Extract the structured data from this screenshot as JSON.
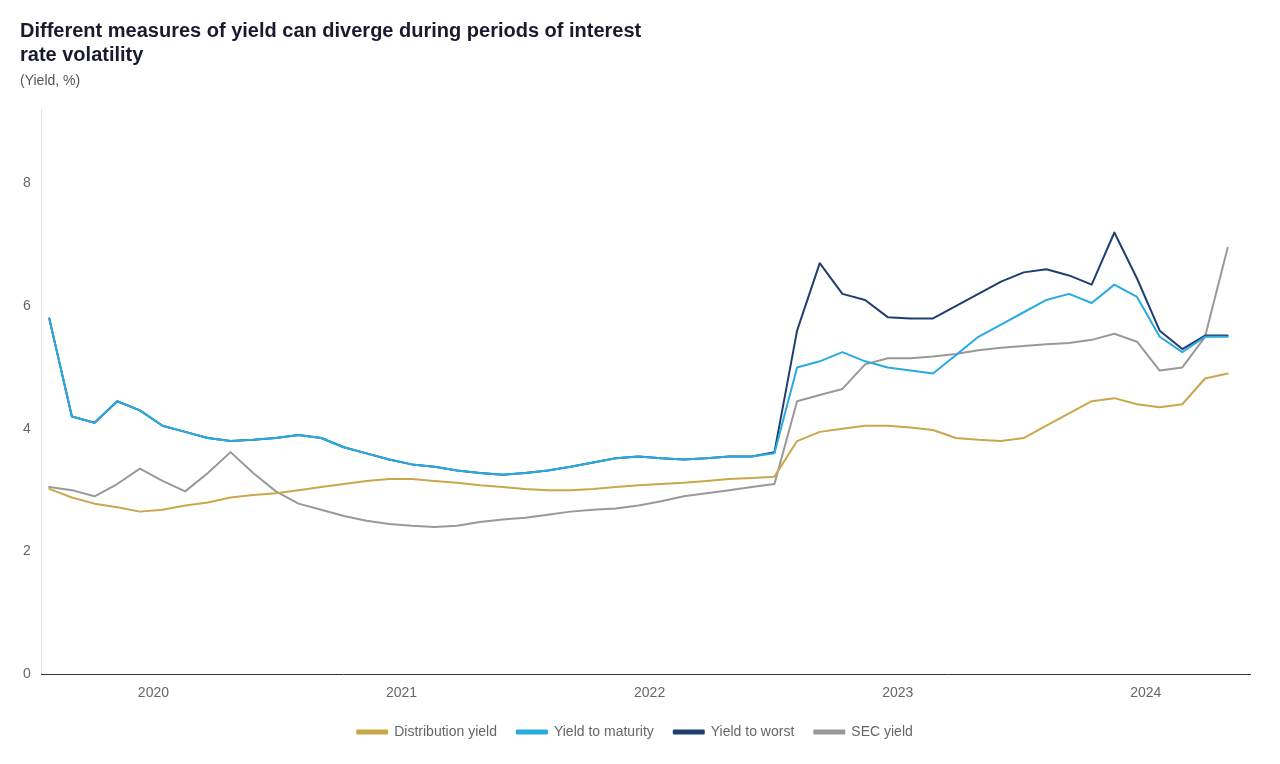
{
  "chart_data": {
    "type": "line",
    "title": [
      "Different measures of yield can diverge during periods of interest",
      "rate volatility"
    ],
    "subtitle": "(Yield, %)",
    "x": [
      2019.58,
      2019.6713,
      2019.7627,
      2019.854,
      2019.9454,
      2020.0367,
      2020.1281,
      2020.2194,
      2020.3108,
      2020.4021,
      2020.4935,
      2020.5848,
      2020.6762,
      2020.7675,
      2020.8588,
      2020.9502,
      2021.0415,
      2021.1329,
      2021.2242,
      2021.3156,
      2021.4069,
      2021.4983,
      2021.5896,
      2021.681,
      2021.7723,
      2021.8637,
      2021.955,
      2022.0463,
      2022.1377,
      2022.229,
      2022.3204,
      2022.4117,
      2022.5031,
      2022.5944,
      2022.6858,
      2022.7771,
      2022.8685,
      2022.9598,
      2023.0512,
      2023.1425,
      2023.2338,
      2023.3252,
      2023.4165,
      2023.5079,
      2023.5992,
      2023.6906,
      2023.7819,
      2023.8733,
      2023.9646,
      2024.056,
      2024.1473,
      2024.2387,
      2024.33
    ],
    "series": [
      {
        "name": "Distribution yield",
        "color": "#C9A84C",
        "values": [
          3.02,
          2.88,
          2.78,
          2.72,
          2.65,
          2.68,
          2.75,
          2.8,
          2.88,
          2.92,
          2.95,
          3.0,
          3.05,
          3.1,
          3.15,
          3.18,
          3.18,
          3.15,
          3.12,
          3.08,
          3.05,
          3.02,
          3.0,
          3.0,
          3.02,
          3.05,
          3.08,
          3.1,
          3.12,
          3.15,
          3.18,
          3.2,
          3.22,
          3.8,
          3.95,
          4.0,
          4.05,
          4.05,
          4.02,
          3.98,
          3.85,
          3.82,
          3.8,
          3.85,
          4.05,
          4.25,
          4.45,
          4.5,
          4.4,
          4.35,
          4.4,
          4.82,
          4.9
        ]
      },
      {
        "name": "Yield to maturity",
        "color": "#29ABE2",
        "values": [
          5.8,
          4.2,
          4.1,
          4.45,
          4.3,
          4.05,
          3.95,
          3.85,
          3.8,
          3.82,
          3.85,
          3.9,
          3.85,
          3.7,
          3.6,
          3.5,
          3.42,
          3.38,
          3.32,
          3.28,
          3.25,
          3.28,
          3.32,
          3.38,
          3.45,
          3.52,
          3.55,
          3.52,
          3.5,
          3.52,
          3.55,
          3.55,
          3.6,
          5.0,
          5.1,
          5.25,
          5.1,
          5.0,
          4.95,
          4.9,
          5.2,
          5.5,
          5.7,
          5.9,
          6.1,
          6.2,
          6.05,
          6.35,
          6.15,
          5.5,
          5.25,
          5.5,
          5.5
        ]
      },
      {
        "name": "Yield to worst",
        "color": "#1F3F6E",
        "values": [
          5.8,
          4.2,
          4.1,
          4.45,
          4.3,
          4.05,
          3.95,
          3.85,
          3.8,
          3.82,
          3.85,
          3.9,
          3.85,
          3.7,
          3.6,
          3.5,
          3.42,
          3.38,
          3.32,
          3.28,
          3.25,
          3.28,
          3.32,
          3.38,
          3.45,
          3.52,
          3.55,
          3.52,
          3.5,
          3.52,
          3.55,
          3.55,
          3.62,
          5.6,
          6.7,
          6.2,
          6.1,
          5.82,
          5.8,
          5.8,
          6.0,
          6.2,
          6.4,
          6.55,
          6.6,
          6.5,
          6.35,
          7.2,
          6.45,
          5.6,
          5.3,
          5.52,
          5.52
        ]
      },
      {
        "name": "SEC yield",
        "color": "#999999",
        "values": [
          3.05,
          3.0,
          2.9,
          3.1,
          3.35,
          3.15,
          2.98,
          3.28,
          3.62,
          3.28,
          2.98,
          2.78,
          2.68,
          2.58,
          2.5,
          2.45,
          2.42,
          2.4,
          2.42,
          2.48,
          2.52,
          2.55,
          2.6,
          2.65,
          2.68,
          2.7,
          2.75,
          2.82,
          2.9,
          2.95,
          3.0,
          3.05,
          3.1,
          4.45,
          4.55,
          4.65,
          5.05,
          5.15,
          5.15,
          5.18,
          5.22,
          5.28,
          5.32,
          5.35,
          5.38,
          5.4,
          5.45,
          5.55,
          5.42,
          4.95,
          5.0,
          5.5,
          6.95
        ]
      }
    ],
    "xlim": [
      2019.55,
      2024.42
    ],
    "xticks": [
      2020,
      2021,
      2022,
      2023,
      2024
    ],
    "ylim": [
      0,
      9.2
    ],
    "yticks": [
      0,
      2,
      4,
      6,
      8
    ],
    "grid": false,
    "legend": "bottom"
  }
}
